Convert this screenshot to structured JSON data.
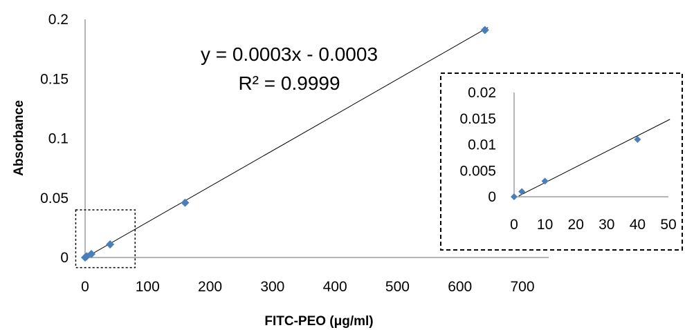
{
  "chart_data": [
    {
      "type": "scatter",
      "xlabel": "FITC-PEO (μg/ml)",
      "ylabel": "Absorbance",
      "xlim": [
        0,
        700
      ],
      "ylim": [
        0,
        0.2
      ],
      "x_ticks": [
        "0",
        "100",
        "200",
        "300",
        "400",
        "500",
        "600",
        "700"
      ],
      "y_ticks": [
        "0",
        "0.05",
        "0.1",
        "0.15",
        "0.2"
      ],
      "points": [
        {
          "x": 0,
          "y": 0
        },
        {
          "x": 2.5,
          "y": 0.001
        },
        {
          "x": 10,
          "y": 0.003
        },
        {
          "x": 40,
          "y": 0.011
        },
        {
          "x": 160,
          "y": 0.046
        },
        {
          "x": 640,
          "y": 0.191
        }
      ],
      "trendline": {
        "slope": 0.0003,
        "intercept": -0.0003
      },
      "equation": "y = 0.0003x - 0.0003",
      "r2_label": "R² = 0.9999",
      "marker_color": "#4a7ebb",
      "line_color": "#000000",
      "zoom_box": {
        "x_range": [
          0,
          80
        ],
        "y_range": [
          0,
          0.04
        ]
      }
    },
    {
      "type": "scatter",
      "title": "",
      "xlim": [
        0,
        50
      ],
      "ylim": [
        0,
        0.02
      ],
      "x_ticks": [
        "0",
        "10",
        "20",
        "30",
        "40",
        "50"
      ],
      "y_ticks": [
        "0",
        "0.005",
        "0.01",
        "0.015",
        "0.02"
      ],
      "points": [
        {
          "x": 0,
          "y": 0
        },
        {
          "x": 2.5,
          "y": 0.001
        },
        {
          "x": 10,
          "y": 0.003
        },
        {
          "x": 40,
          "y": 0.011
        }
      ],
      "trendline": {
        "slope": 0.0003,
        "intercept": -0.0003
      },
      "marker_color": "#4a7ebb"
    }
  ]
}
